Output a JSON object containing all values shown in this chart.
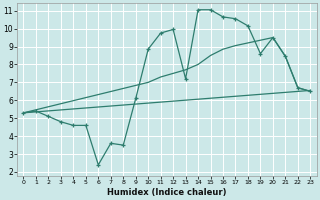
{
  "xlabel": "Humidex (Indice chaleur)",
  "bg_color": "#cce8e8",
  "grid_color": "#ffffff",
  "line_color": "#2e7d6e",
  "xlim": [
    -0.5,
    23.5
  ],
  "ylim": [
    1.8,
    11.4
  ],
  "xticks": [
    0,
    1,
    2,
    3,
    4,
    5,
    6,
    7,
    8,
    9,
    10,
    11,
    12,
    13,
    14,
    15,
    16,
    17,
    18,
    19,
    20,
    21,
    22,
    23
  ],
  "yticks": [
    2,
    3,
    4,
    5,
    6,
    7,
    8,
    9,
    10,
    11
  ],
  "curve1_x": [
    0,
    1,
    2,
    3,
    4,
    5,
    6,
    7,
    8,
    9,
    10,
    11,
    12,
    13,
    14,
    15,
    16,
    17,
    18,
    19,
    20,
    21,
    22,
    23
  ],
  "curve1_y": [
    5.3,
    5.4,
    5.1,
    4.8,
    4.6,
    4.6,
    2.4,
    3.6,
    3.5,
    6.1,
    8.85,
    9.75,
    9.95,
    7.2,
    11.05,
    11.05,
    10.65,
    10.55,
    10.15,
    8.6,
    9.5,
    8.45,
    6.7,
    6.5
  ],
  "curve2_x": [
    0,
    23
  ],
  "curve2_y": [
    5.3,
    6.55
  ],
  "curve3_x": [
    0,
    10,
    11,
    12,
    13,
    14,
    15,
    16,
    17,
    18,
    19,
    20,
    21,
    22,
    23
  ],
  "curve3_y": [
    5.3,
    7.0,
    7.3,
    7.5,
    7.7,
    8.0,
    8.5,
    8.85,
    9.05,
    9.2,
    9.35,
    9.5,
    8.45,
    6.7,
    6.5
  ]
}
